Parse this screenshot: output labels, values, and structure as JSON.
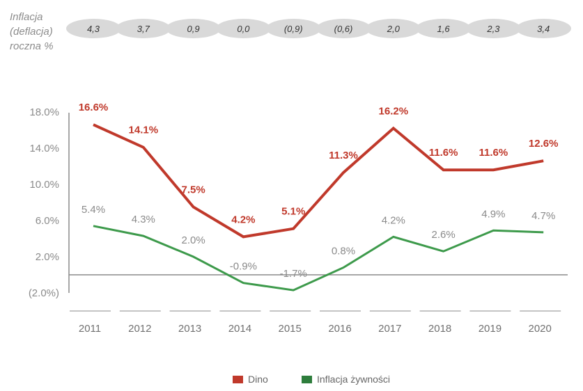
{
  "inflation_row": {
    "label_lines": [
      "Inflacja",
      "(deflacja)",
      "roczna %"
    ],
    "values": [
      "4,3",
      "3,7",
      "0,9",
      "0,0",
      "(0,9)",
      "(0,6)",
      "2,0",
      "1,6",
      "2,3",
      "3,4"
    ]
  },
  "colors": {
    "dino": "#c0392b",
    "food_inflation": "#3d9a4b",
    "food_inflation_legend": "#2e7d3c",
    "pill": "#d9d9d9"
  },
  "chart_data": {
    "type": "line",
    "categories": [
      "2011",
      "2012",
      "2013",
      "2014",
      "2015",
      "2016",
      "2017",
      "2018",
      "2019",
      "2020"
    ],
    "series": [
      {
        "name": "Dino",
        "values": [
          16.6,
          14.1,
          7.5,
          4.2,
          5.1,
          11.3,
          16.2,
          11.6,
          11.6,
          12.6
        ],
        "labels": [
          "16.6%",
          "14.1%",
          "7.5%",
          "4.2%",
          "5.1%",
          "11.3%",
          "16.2%",
          "11.6%",
          "11.6%",
          "12.6%"
        ]
      },
      {
        "name": "Inflacja żywności",
        "values": [
          5.4,
          4.3,
          2.0,
          -0.9,
          -1.7,
          0.8,
          4.2,
          2.6,
          4.9,
          4.7
        ],
        "labels": [
          "5.4%",
          "4.3%",
          "2.0%",
          "-0.9%",
          "-1.7%",
          "0.8%",
          "4.2%",
          "2.6%",
          "4.9%",
          "4.7%"
        ]
      }
    ],
    "yticks": [
      18,
      14,
      10,
      6,
      2,
      -2
    ],
    "ytick_labels": [
      "18.0%",
      "14.0%",
      "10.0%",
      "6.0%",
      "2.0%",
      "(2.0%)"
    ],
    "ylim": [
      -2,
      18
    ],
    "title": "",
    "xlabel": "",
    "ylabel": "",
    "grid": false,
    "legend_position": "bottom"
  }
}
